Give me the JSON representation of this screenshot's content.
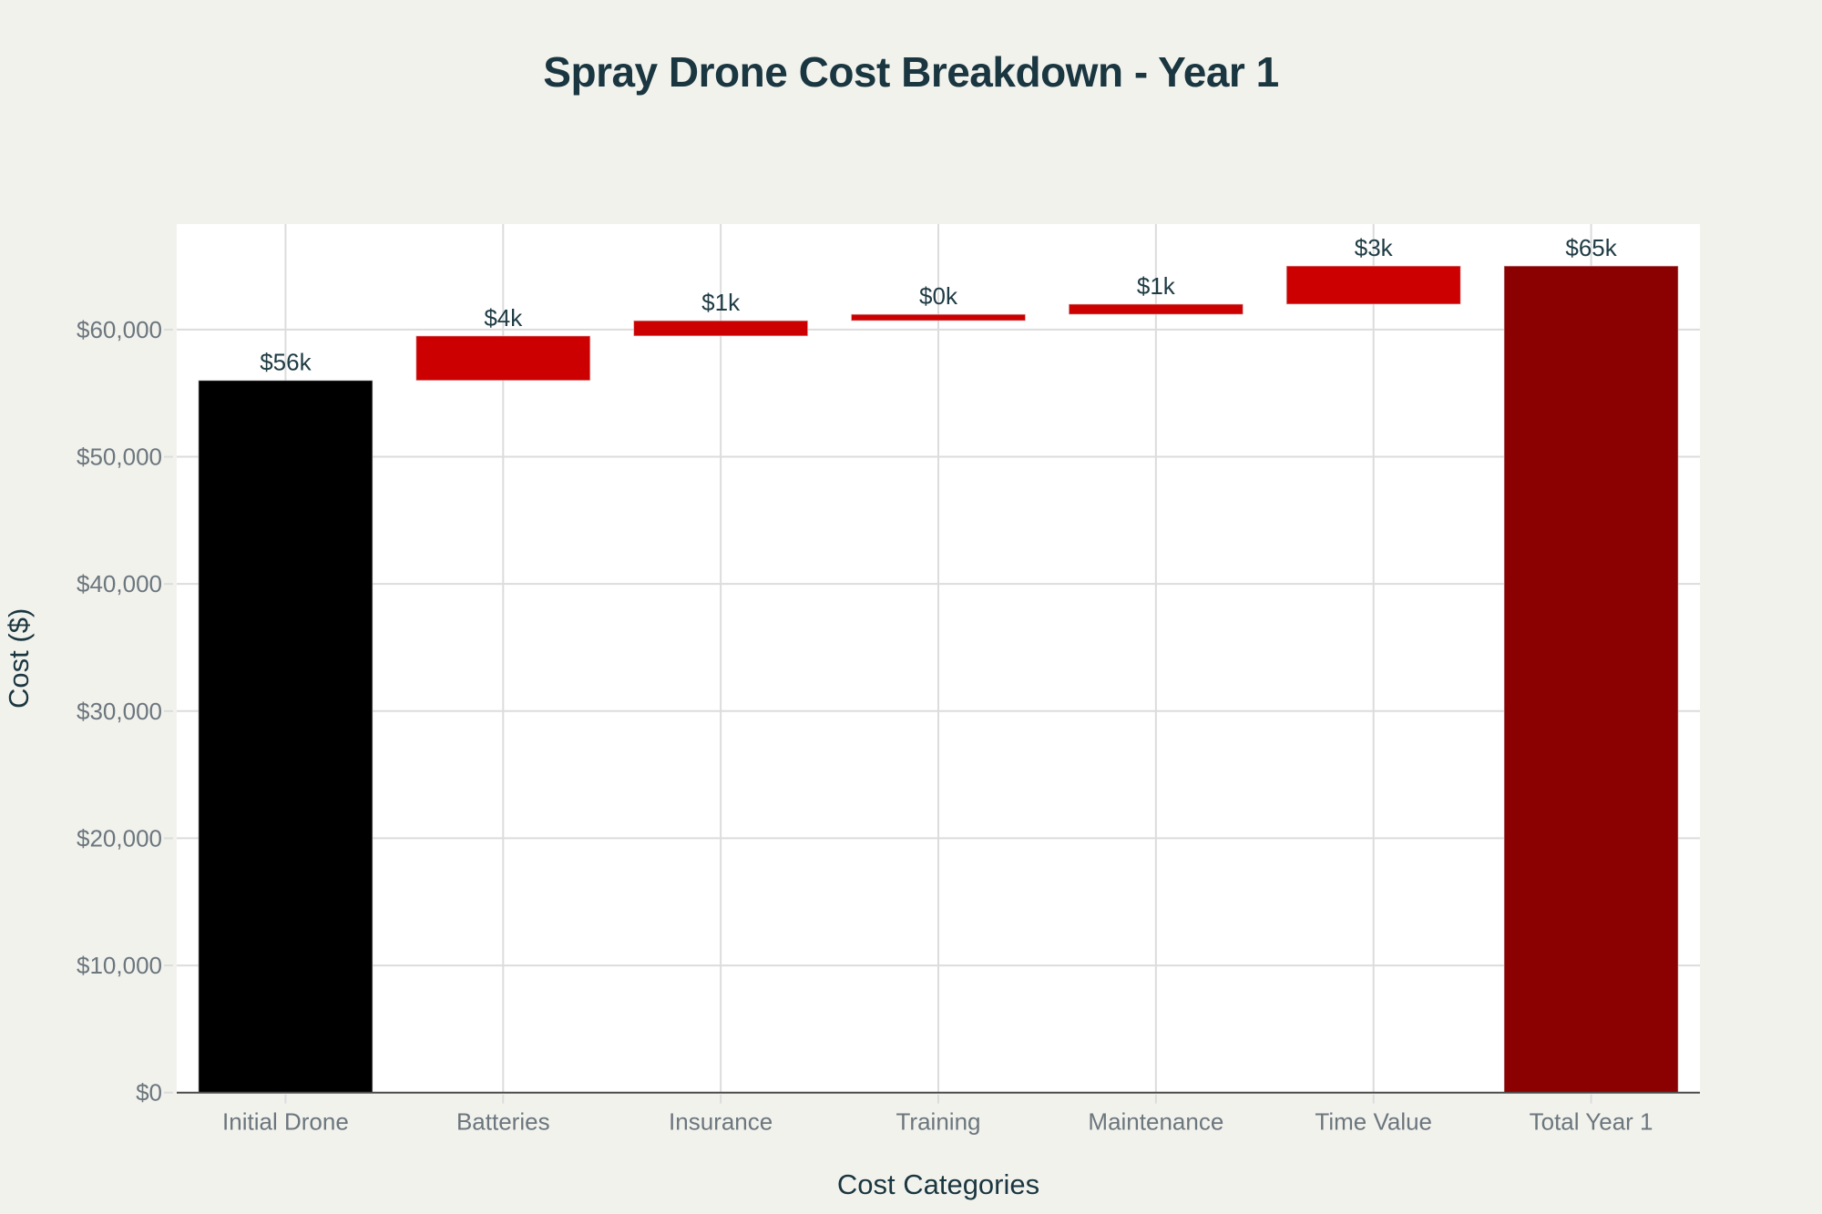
{
  "chart_data": {
    "type": "waterfall",
    "title": "Spray Drone Cost Breakdown - Year 1",
    "xlabel": "Cost Categories",
    "ylabel": "Cost ($)",
    "categories": [
      "Initial Drone",
      "Batteries",
      "Insurance",
      "Training",
      "Maintenance",
      "Time Value",
      "Total Year 1"
    ],
    "values": [
      56000,
      3500,
      1200,
      500,
      800,
      3000,
      65000
    ],
    "measures": [
      "absolute",
      "relative",
      "relative",
      "relative",
      "relative",
      "relative",
      "total"
    ],
    "data_labels": [
      "$56k",
      "$4k",
      "$1k",
      "$0k",
      "$1k",
      "$3k",
      "$65k"
    ],
    "ylim": [
      0,
      68300
    ],
    "yticks": [
      0,
      10000,
      20000,
      30000,
      40000,
      50000,
      60000
    ],
    "ytick_labels": [
      "$0",
      "$10,000",
      "$20,000",
      "$30,000",
      "$40,000",
      "$50,000",
      "$60,000"
    ],
    "grid": true,
    "legend": "none",
    "colors": {
      "absolute": "#000000",
      "increase": "#cc0000",
      "total": "#8b0000",
      "plot_background": "#ffffff",
      "paper_background": "#f2f2ed",
      "gridline": "#dcdcdc",
      "title": "#1a3640"
    }
  }
}
